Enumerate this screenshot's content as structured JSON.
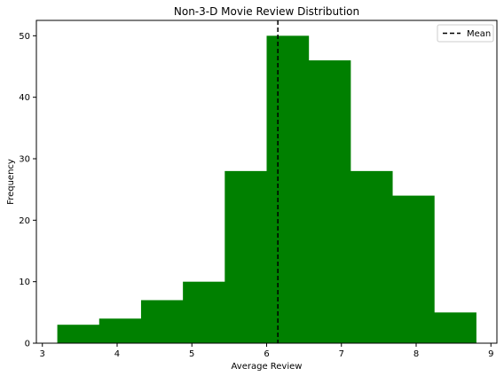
{
  "chart_data": {
    "type": "bar",
    "title": "Non-3-D Movie Review Distribution",
    "xlabel": "Average Review",
    "ylabel": "Frequency",
    "bin_edges": [
      3.2,
      3.76,
      4.32,
      4.88,
      5.44,
      6.0,
      6.56,
      7.12,
      7.68,
      8.24,
      8.8
    ],
    "values": [
      3,
      4,
      7,
      10,
      28,
      50,
      46,
      28,
      24,
      5
    ],
    "xlim": [
      2.92,
      9.08
    ],
    "ylim": [
      0,
      52.5
    ],
    "xticks": [
      3,
      4,
      5,
      6,
      7,
      8,
      9
    ],
    "yticks": [
      0,
      10,
      20,
      30,
      40,
      50
    ],
    "bar_color": "#008000",
    "mean": 6.15,
    "mean_line_color": "#000000",
    "legend": {
      "entries": [
        "Mean"
      ],
      "placement": "top-right"
    },
    "grid": false
  }
}
